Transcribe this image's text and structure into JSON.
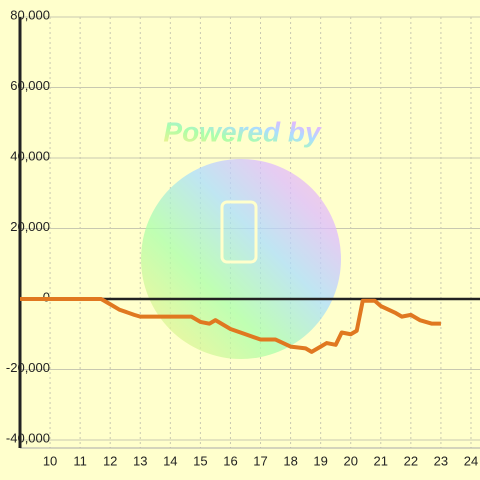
{
  "chart_data": {
    "type": "line",
    "watermark": "Powered by",
    "x": [
      9,
      11.7,
      12,
      12.3,
      12.8,
      13,
      14.7,
      15,
      15.3,
      15.5,
      16,
      16.5,
      17,
      17.5,
      18,
      18.5,
      18.7,
      19,
      19.2,
      19.5,
      19.7,
      20,
      20.2,
      20.4,
      20.8,
      21,
      21.5,
      21.7,
      22,
      22.3,
      22.7,
      23
    ],
    "series": [
      {
        "color": "#e07820",
        "values": [
          0,
          0,
          -1500,
          -3000,
          -4500,
          -5000,
          -5000,
          -6500,
          -7000,
          -6000,
          -8500,
          -10000,
          -11500,
          -11500,
          -13500,
          -14000,
          -15000,
          -13500,
          -12500,
          -13000,
          -9500,
          -10000,
          -9000,
          -500,
          -500,
          -2000,
          -4000,
          -5000,
          -4500,
          -6000,
          -7000,
          -7000
        ]
      }
    ],
    "xlim": [
      9,
      24.3
    ],
    "xticks": [
      10,
      11,
      12,
      13,
      14,
      15,
      16,
      17,
      18,
      19,
      20,
      21,
      22,
      23,
      24
    ],
    "ylim": [
      -40000,
      80000
    ],
    "yticks": [
      {
        "value": -40000,
        "label": "-40,000"
      },
      {
        "value": -20000,
        "label": "-20,000"
      },
      0,
      {
        "value": 20000,
        "label": "20,000"
      },
      {
        "value": 40000,
        "label": "40,000"
      },
      {
        "value": 60000,
        "label": "60,000"
      },
      {
        "value": 80000,
        "label": "80,000"
      }
    ],
    "grid": true
  }
}
